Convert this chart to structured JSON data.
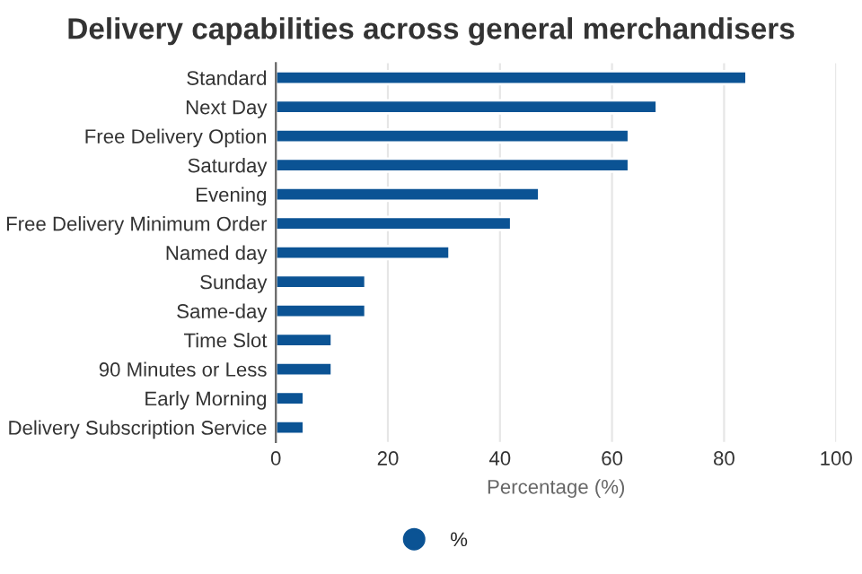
{
  "chart_data": {
    "type": "bar",
    "orientation": "horizontal",
    "title": "Delivery capabilities across general merchandisers",
    "xlabel": "Percentage (%)",
    "categories": [
      "Standard",
      "Next Day",
      "Free Delivery Option",
      "Saturday",
      "Evening",
      "Free Delivery Minimum Order",
      "Named day",
      "Sunday",
      "Same-day",
      "Time Slot",
      "90 Minutes or Less",
      "Early Morning",
      "Delivery Subscription Service"
    ],
    "series": [
      {
        "name": "%",
        "color": "#0b5394",
        "values": [
          84,
          68,
          63,
          63,
          47,
          42,
          31,
          16,
          16,
          10,
          10,
          5,
          5
        ]
      }
    ],
    "xlim": [
      0,
      100
    ],
    "xticks": [
      0,
      20,
      40,
      60,
      80,
      100
    ],
    "grid": "x",
    "legend": "bottom"
  }
}
